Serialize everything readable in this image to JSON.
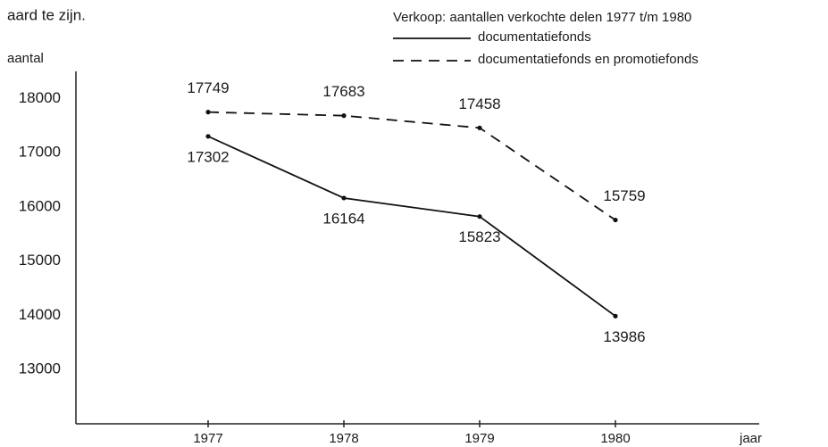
{
  "header_text": "aard te zijn.",
  "chart_data": {
    "type": "line",
    "legend_title": "Verkoop: aantallen verkochte delen 1977 t/m 1980",
    "ylabel": "aantal",
    "xlabel": "jaar",
    "categories": [
      "1977",
      "1978",
      "1979",
      "1980"
    ],
    "series": [
      {
        "name": "documentatiefonds",
        "color": "#111111",
        "style": "solid",
        "values": [
          17302,
          16164,
          15823,
          13986
        ]
      },
      {
        "name": "documentatiefonds en promotiefonds",
        "color": "#111111",
        "style": "dashed",
        "values": [
          17749,
          17683,
          17458,
          15759
        ]
      }
    ],
    "ylim": [
      12000,
      18500
    ],
    "yticks": [
      13000,
      14000,
      15000,
      16000,
      17000,
      18000
    ],
    "grid": false,
    "legend": "top-right"
  }
}
